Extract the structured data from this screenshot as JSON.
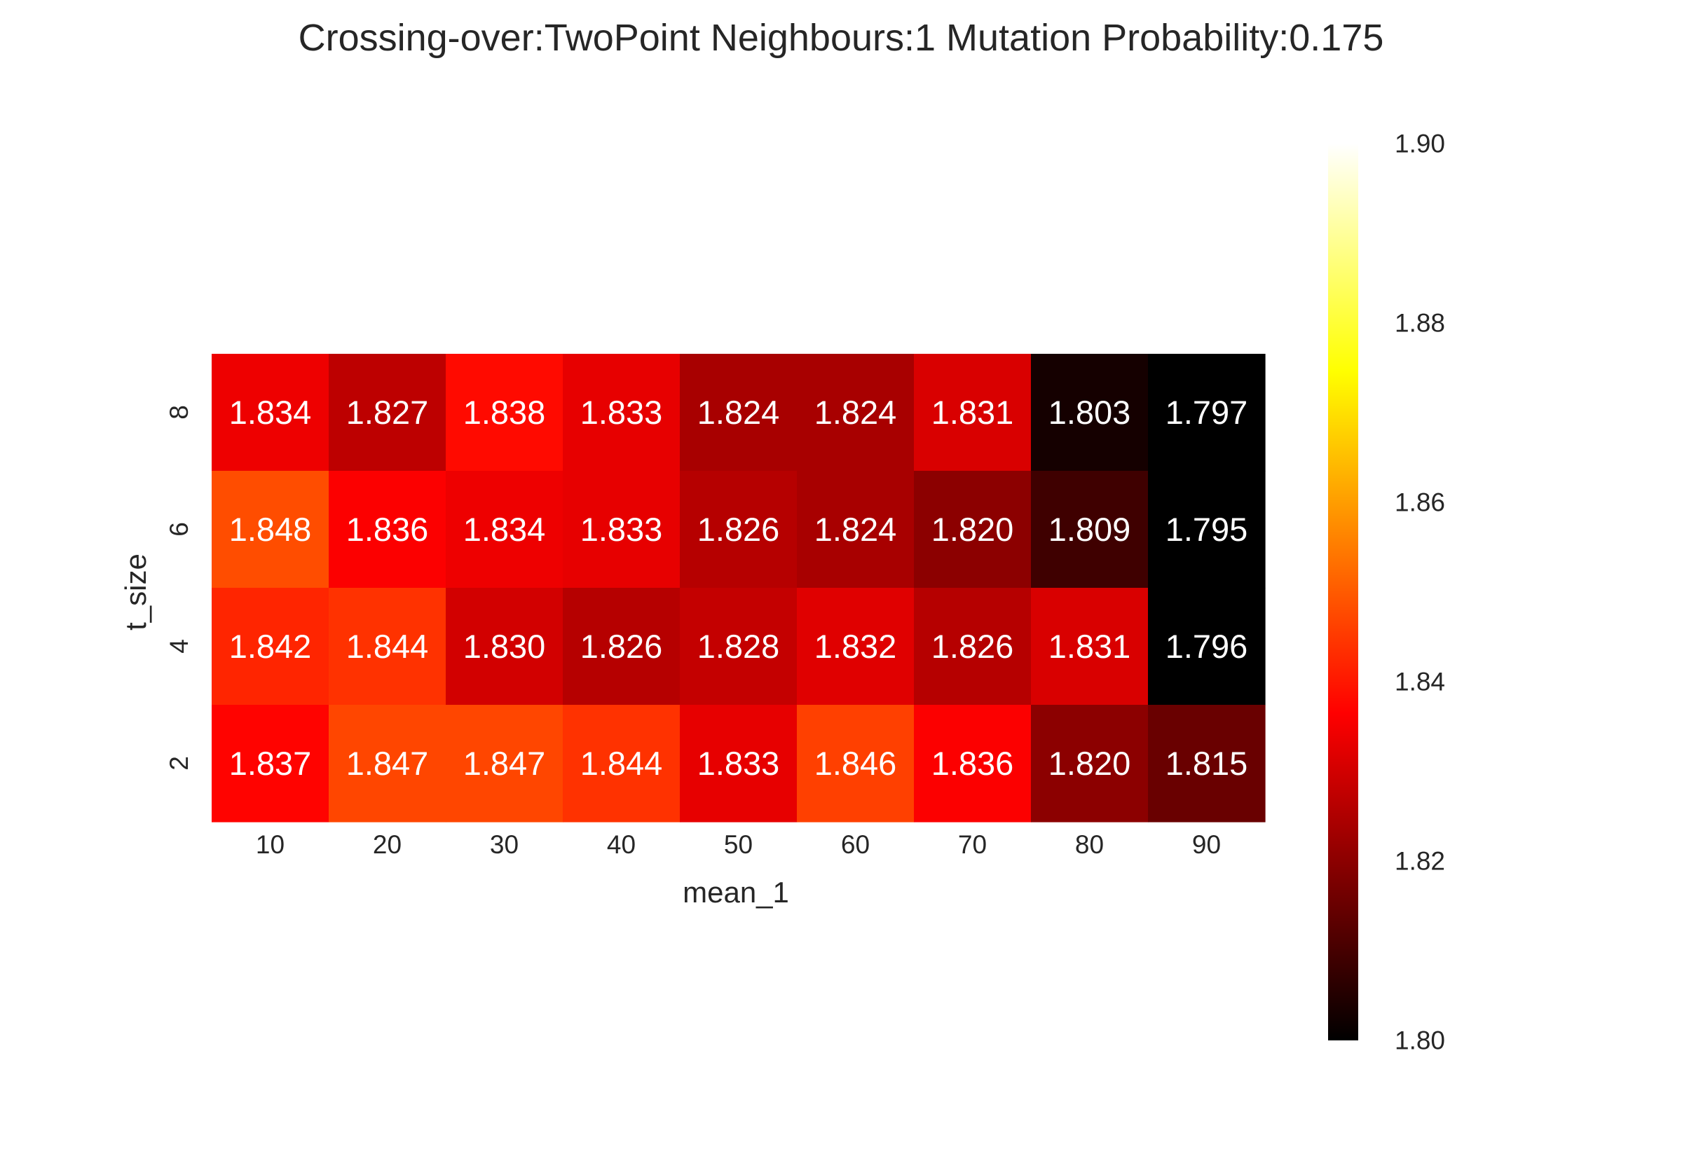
{
  "chart_data": {
    "type": "heatmap",
    "title": "Crossing-over:TwoPoint Neighbours:1 Mutation Probability:0.175",
    "xlabel": "mean_1",
    "ylabel": "t_size",
    "x_categories": [
      "10",
      "20",
      "30",
      "40",
      "50",
      "60",
      "70",
      "80",
      "90"
    ],
    "y_categories": [
      "8",
      "6",
      "4",
      "2"
    ],
    "values": [
      [
        1.834,
        1.827,
        1.838,
        1.833,
        1.824,
        1.824,
        1.831,
        1.803,
        1.797
      ],
      [
        1.848,
        1.836,
        1.834,
        1.833,
        1.826,
        1.824,
        1.82,
        1.809,
        1.795
      ],
      [
        1.842,
        1.844,
        1.83,
        1.826,
        1.828,
        1.832,
        1.826,
        1.831,
        1.796
      ],
      [
        1.837,
        1.847,
        1.847,
        1.844,
        1.833,
        1.846,
        1.836,
        1.82,
        1.815
      ]
    ],
    "value_format": "0.000",
    "colormap": "hot",
    "colorbar": {
      "range": [
        1.8,
        1.9
      ],
      "ticks": [
        "1.80",
        "1.82",
        "1.84",
        "1.86",
        "1.88",
        "1.90"
      ]
    },
    "cell_text_color": "#ffffff",
    "text_color": "#262626"
  }
}
